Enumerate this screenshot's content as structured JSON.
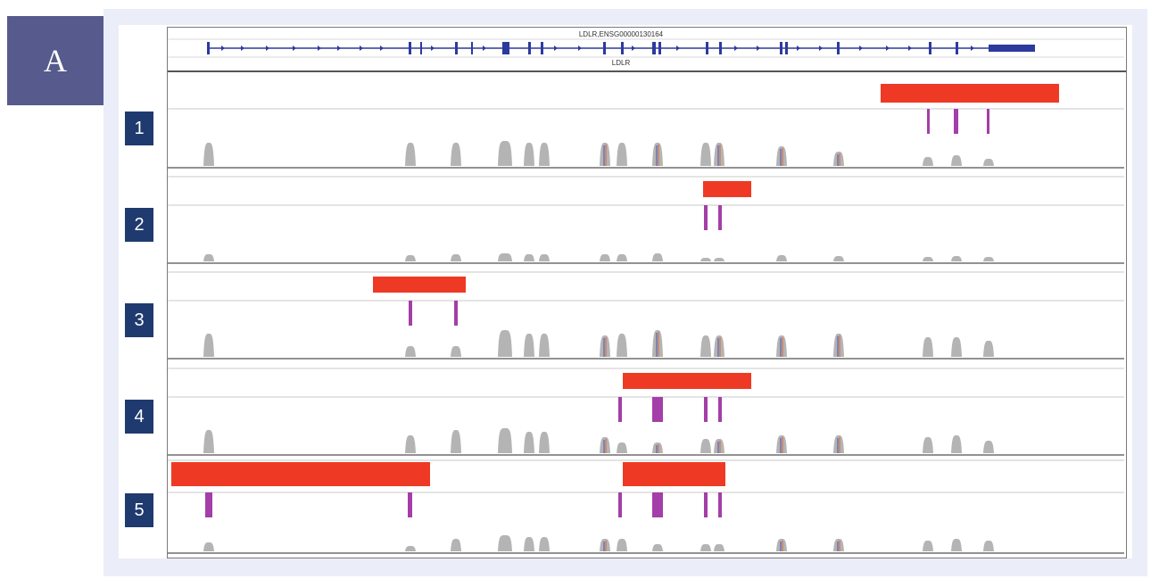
{
  "panel_label": "A",
  "gene_track": {
    "transcript_label": "LDLR,ENSG00000130164",
    "gene_label": "LDLR",
    "line_color": "#2c3a9e"
  },
  "lane_labels": [
    "1",
    "2",
    "3",
    "4",
    "5"
  ],
  "colors": {
    "deletion": "#ee3a24",
    "exon_mark": "#a43ea8",
    "coverage": "#b4b4b4",
    "divider": "#6e6e6e",
    "guide": "#c9c9c9"
  }
}
